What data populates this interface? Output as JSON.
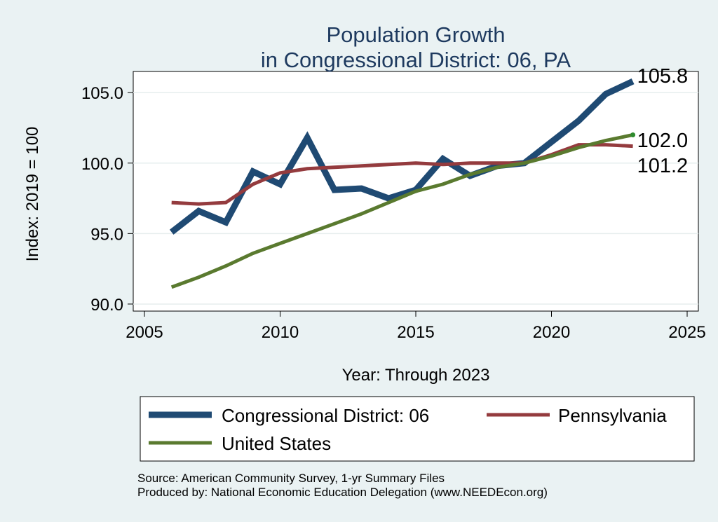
{
  "chart_data": {
    "type": "line",
    "title": [
      "Population Growth",
      "in Congressional District: 06, PA"
    ],
    "xlabel": "Year: Through 2023",
    "ylabel": "Index: 2019 = 100",
    "xlim": [
      2005,
      2025
    ],
    "ylim": [
      89.5,
      106.5
    ],
    "x_ticks": [
      2005,
      2010,
      2015,
      2020,
      2025
    ],
    "y_ticks": [
      90,
      95,
      100,
      105
    ],
    "y_tick_labels": [
      "90.0",
      "95.0",
      "100.0",
      "105.0"
    ],
    "grid": true,
    "legend_position": "bottom",
    "x": [
      2006,
      2007,
      2008,
      2009,
      2010,
      2011,
      2012,
      2013,
      2014,
      2015,
      2016,
      2017,
      2018,
      2019,
      2020,
      2021,
      2022,
      2023
    ],
    "series": [
      {
        "name": "Congressional District: 06",
        "color": "#1f4a73",
        "values": [
          95.1,
          96.6,
          95.8,
          99.4,
          98.5,
          101.8,
          98.1,
          98.2,
          97.5,
          98.1,
          100.3,
          99.1,
          99.8,
          100.0,
          101.5,
          103.0,
          104.9,
          105.8
        ],
        "end_label": "105.8"
      },
      {
        "name": "Pennsylvania",
        "color": "#943b3e",
        "values": [
          97.2,
          97.1,
          97.2,
          98.5,
          99.3,
          99.6,
          99.7,
          99.8,
          99.9,
          100.0,
          99.9,
          100.0,
          100.0,
          100.0,
          100.6,
          101.3,
          101.3,
          101.2
        ],
        "end_label": "101.2"
      },
      {
        "name": "United States",
        "color": "#5a7a2f",
        "values": [
          91.2,
          91.9,
          92.7,
          93.6,
          94.3,
          95.0,
          95.7,
          96.4,
          97.2,
          98.0,
          98.5,
          99.2,
          99.7,
          100.0,
          100.5,
          101.1,
          101.6,
          102.0
        ],
        "end_label": "102.0"
      }
    ],
    "notes": [
      "Source: American Community Survey, 1-yr Summary Files",
      "Produced by: National Economic Education Delegation (www.NEEDEcon.org)"
    ]
  }
}
